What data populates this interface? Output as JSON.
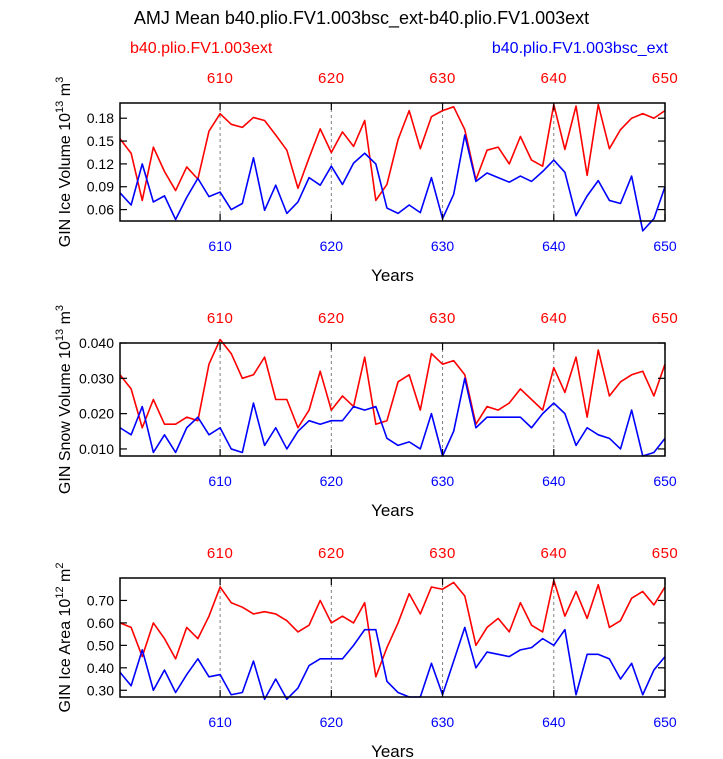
{
  "title": "AMJ Mean b40.plio.FV1.003bsc_ext-b40.plio.FV1.003ext",
  "colors": {
    "series_a": "#ff0000",
    "series_b": "#0000ff",
    "axis": "#000000",
    "refline": "#808080"
  },
  "chart_data": [
    {
      "type": "line",
      "ylabel": "GIN Ice Volume 10",
      "ylabel_exp": "13",
      "ylabel_unit": "m",
      "ylabel_unit_exp": "3",
      "xlabel": "Years",
      "xlim": [
        601,
        650
      ],
      "ylim": [
        0.045,
        0.2
      ],
      "yticks": [
        0.06,
        0.09,
        0.12,
        0.15,
        0.18
      ],
      "ytick_labels": [
        "0.06",
        "0.09",
        "0.12",
        "0.15",
        "0.18"
      ],
      "xticks": [
        610,
        620,
        630,
        640,
        650
      ],
      "xtick_labels": [
        "610",
        "620",
        "630",
        "640",
        "650"
      ],
      "series": [
        {
          "name": "b40.plio.FV1.003ext",
          "values": [
            0.153,
            0.134,
            0.072,
            0.142,
            0.11,
            0.085,
            0.116,
            0.1,
            0.163,
            0.186,
            0.172,
            0.168,
            0.181,
            0.177,
            0.158,
            0.138,
            0.088,
            0.128,
            0.166,
            0.135,
            0.162,
            0.143,
            0.177,
            0.072,
            0.093,
            0.152,
            0.19,
            0.14,
            0.182,
            0.19,
            0.195,
            0.165,
            0.099,
            0.138,
            0.142,
            0.12,
            0.156,
            0.125,
            0.117,
            0.198,
            0.139,
            0.196,
            0.105,
            0.198,
            0.14,
            0.165,
            0.18,
            0.186,
            0.18,
            0.19
          ]
        },
        {
          "name": "b40.plio.FV1.003bsc_ext",
          "values": [
            0.082,
            0.066,
            0.12,
            0.07,
            0.078,
            0.047,
            0.076,
            0.101,
            0.077,
            0.083,
            0.06,
            0.068,
            0.128,
            0.059,
            0.092,
            0.055,
            0.07,
            0.102,
            0.092,
            0.117,
            0.093,
            0.121,
            0.134,
            0.12,
            0.062,
            0.055,
            0.066,
            0.056,
            0.102,
            0.048,
            0.08,
            0.158,
            0.097,
            0.108,
            0.102,
            0.096,
            0.104,
            0.097,
            0.11,
            0.125,
            0.109,
            0.052,
            0.078,
            0.098,
            0.072,
            0.068,
            0.104,
            0.032,
            0.048,
            0.09
          ]
        }
      ]
    },
    {
      "type": "line",
      "ylabel": "GIN Snow Volume 10",
      "ylabel_exp": "13",
      "ylabel_unit": "m",
      "ylabel_unit_exp": "3",
      "xlabel": "Years",
      "xlim": [
        601,
        650
      ],
      "ylim": [
        0.008,
        0.04
      ],
      "yticks": [
        0.01,
        0.02,
        0.03,
        0.04
      ],
      "ytick_labels": [
        "0.010",
        "0.020",
        "0.030",
        "0.040"
      ],
      "xticks": [
        610,
        620,
        630,
        640,
        650
      ],
      "xtick_labels": [
        "610",
        "620",
        "630",
        "640",
        "650"
      ],
      "series": [
        {
          "name": "b40.plio.FV1.003ext",
          "values": [
            0.031,
            0.027,
            0.016,
            0.024,
            0.017,
            0.017,
            0.019,
            0.018,
            0.034,
            0.041,
            0.037,
            0.03,
            0.031,
            0.036,
            0.024,
            0.024,
            0.016,
            0.021,
            0.032,
            0.021,
            0.025,
            0.022,
            0.036,
            0.017,
            0.018,
            0.029,
            0.031,
            0.021,
            0.037,
            0.034,
            0.035,
            0.031,
            0.017,
            0.022,
            0.021,
            0.023,
            0.027,
            0.024,
            0.021,
            0.033,
            0.026,
            0.036,
            0.019,
            0.038,
            0.025,
            0.029,
            0.031,
            0.032,
            0.025,
            0.034
          ]
        },
        {
          "name": "b40.plio.FV1.003bsc_ext",
          "values": [
            0.016,
            0.014,
            0.022,
            0.009,
            0.014,
            0.009,
            0.016,
            0.019,
            0.014,
            0.016,
            0.01,
            0.009,
            0.023,
            0.011,
            0.016,
            0.01,
            0.015,
            0.018,
            0.017,
            0.018,
            0.018,
            0.022,
            0.021,
            0.022,
            0.013,
            0.011,
            0.012,
            0.01,
            0.02,
            0.008,
            0.015,
            0.03,
            0.016,
            0.019,
            0.019,
            0.019,
            0.019,
            0.016,
            0.02,
            0.023,
            0.02,
            0.011,
            0.016,
            0.014,
            0.013,
            0.01,
            0.021,
            0.008,
            0.009,
            0.013
          ]
        }
      ]
    },
    {
      "type": "line",
      "ylabel": "GIN Ice Area 10",
      "ylabel_exp": "12",
      "ylabel_unit": "m",
      "ylabel_unit_exp": "2",
      "xlabel": "Years",
      "xlim": [
        601,
        650
      ],
      "ylim": [
        0.27,
        0.8
      ],
      "yticks": [
        0.3,
        0.4,
        0.5,
        0.6,
        0.7
      ],
      "ytick_labels": [
        "0.30",
        "0.40",
        "0.50",
        "0.60",
        "0.70"
      ],
      "xticks": [
        610,
        620,
        630,
        640,
        650
      ],
      "xtick_labels": [
        "610",
        "620",
        "630",
        "640",
        "650"
      ],
      "series": [
        {
          "name": "b40.plio.FV1.003ext",
          "values": [
            0.6,
            0.58,
            0.45,
            0.6,
            0.53,
            0.44,
            0.58,
            0.53,
            0.63,
            0.76,
            0.69,
            0.67,
            0.64,
            0.65,
            0.64,
            0.61,
            0.56,
            0.59,
            0.7,
            0.6,
            0.63,
            0.6,
            0.69,
            0.36,
            0.49,
            0.6,
            0.73,
            0.64,
            0.76,
            0.75,
            0.78,
            0.72,
            0.5,
            0.58,
            0.62,
            0.56,
            0.69,
            0.59,
            0.56,
            0.79,
            0.63,
            0.74,
            0.62,
            0.77,
            0.58,
            0.61,
            0.71,
            0.74,
            0.68,
            0.76
          ]
        },
        {
          "name": "b40.plio.FV1.003bsc_ext",
          "values": [
            0.38,
            0.32,
            0.48,
            0.3,
            0.39,
            0.29,
            0.37,
            0.44,
            0.36,
            0.37,
            0.28,
            0.29,
            0.43,
            0.26,
            0.35,
            0.26,
            0.31,
            0.41,
            0.44,
            0.44,
            0.44,
            0.5,
            0.57,
            0.57,
            0.34,
            0.29,
            0.27,
            0.27,
            0.42,
            0.28,
            0.43,
            0.58,
            0.4,
            0.47,
            0.46,
            0.45,
            0.48,
            0.49,
            0.53,
            0.5,
            0.57,
            0.28,
            0.46,
            0.46,
            0.44,
            0.35,
            0.42,
            0.28,
            0.39,
            0.45
          ]
        }
      ]
    }
  ]
}
